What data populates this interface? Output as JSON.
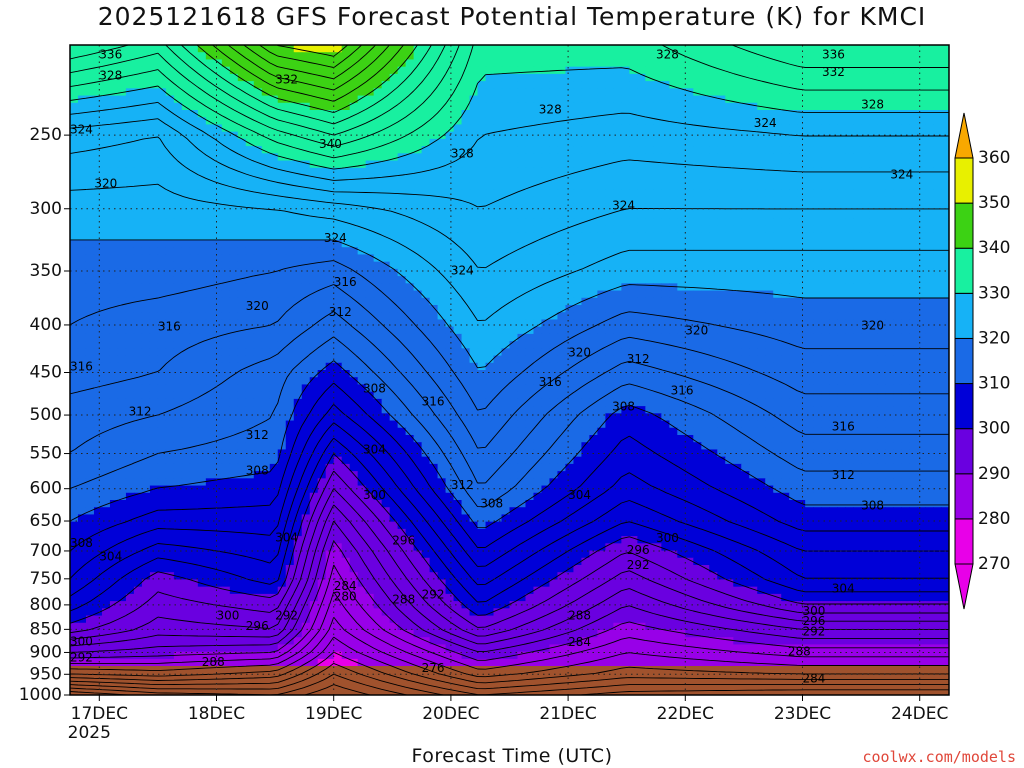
{
  "title": "2025121618 GFS Forecast Potential Temperature (K) for KMCI",
  "xlabel": "Forecast Time (UTC)",
  "credit": "coolwx.com/models",
  "chart_data": {
    "type": "heatmap",
    "title": "2025121618 GFS Forecast Potential Temperature (K) for KMCI",
    "xlabel": "Forecast Time (UTC)",
    "ylabel": "",
    "y_scale": "log",
    "y_inverted": true,
    "ylim": [
      1000,
      200
    ],
    "xlim": [
      "2025-12-16T18",
      "2025-12-24T06"
    ],
    "x_ticks": [
      {
        "label": "17DEC",
        "sub": "2025",
        "time": "2025-12-17T00"
      },
      {
        "label": "18DEC",
        "time": "2025-12-18T00"
      },
      {
        "label": "19DEC",
        "time": "2025-12-19T00"
      },
      {
        "label": "20DEC",
        "time": "2025-12-20T00"
      },
      {
        "label": "21DEC",
        "time": "2025-12-21T00"
      },
      {
        "label": "22DEC",
        "time": "2025-12-22T00"
      },
      {
        "label": "23DEC",
        "time": "2025-12-23T00"
      },
      {
        "label": "24DEC",
        "time": "2025-12-24T00"
      }
    ],
    "y_ticks": [
      250,
      300,
      350,
      400,
      450,
      500,
      550,
      600,
      650,
      700,
      750,
      800,
      850,
      900,
      950,
      1000
    ],
    "grid": true,
    "colorbar": {
      "location": "right",
      "ticks": [
        270,
        280,
        290,
        300,
        310,
        320,
        330,
        340,
        350,
        360
      ],
      "colors": [
        "#e800e8",
        "#9800e8",
        "#6a00e0",
        "#0000d8",
        "#1a6ae6",
        "#16b2f6",
        "#18f0a0",
        "#3cd214",
        "#e8f000",
        "#f8a800"
      ]
    },
    "contour_interval": 2,
    "ground_color": "#a0522d",
    "profiles": [
      {
        "time": "2025-12-16T18",
        "levels": [
          1000,
          950,
          900,
          850,
          800,
          750,
          700,
          650,
          600,
          550,
          500,
          450,
          400,
          350,
          300,
          250,
          200
        ],
        "theta": [
          272,
          284,
          292,
          299,
          303,
          306,
          308,
          310,
          312,
          314,
          315,
          317,
          318,
          319,
          321,
          325,
          338
        ]
      },
      {
        "time": "2025-12-17T12",
        "levels": [
          1000,
          950,
          900,
          850,
          800,
          750,
          700,
          650,
          600,
          550,
          500,
          450,
          400,
          350,
          300,
          250,
          200
        ],
        "theta": [
          275,
          285,
          291,
          295,
          297,
          299,
          303,
          307,
          310,
          312,
          314,
          316,
          317,
          319,
          321,
          324,
          335
        ]
      },
      {
        "time": "2025-12-18T12",
        "levels": [
          1000,
          950,
          900,
          850,
          800,
          750,
          700,
          650,
          600,
          550,
          500,
          450,
          400,
          350,
          300,
          250,
          200
        ],
        "theta": [
          276,
          283,
          290,
          296,
          299,
          303,
          305,
          307,
          309,
          311,
          312,
          313,
          316,
          318,
          322,
          333,
          350
        ]
      },
      {
        "time": "2025-12-19T00",
        "levels": [
          1000,
          950,
          900,
          850,
          800,
          750,
          700,
          650,
          600,
          550,
          500,
          450,
          400,
          350,
          300,
          250,
          200
        ],
        "theta": [
          272,
          276,
          280,
          283,
          285,
          287,
          289,
          292,
          296,
          300,
          305,
          309,
          313,
          317,
          323,
          336,
          352
        ]
      },
      {
        "time": "2025-12-20T06",
        "levels": [
          1000,
          950,
          900,
          850,
          800,
          750,
          700,
          650,
          600,
          550,
          500,
          450,
          400,
          350,
          300,
          250,
          200
        ],
        "theta": [
          280,
          287,
          292,
          298,
          302,
          305,
          308,
          311,
          314,
          316,
          318,
          320,
          322,
          324,
          326,
          328,
          331
        ]
      },
      {
        "time": "2025-12-21T12",
        "levels": [
          1000,
          950,
          900,
          850,
          800,
          750,
          700,
          650,
          600,
          550,
          500,
          450,
          400,
          350,
          300,
          250,
          200
        ],
        "theta": [
          277,
          283,
          286,
          289,
          292,
          295,
          298,
          302,
          305,
          307,
          309,
          313,
          317,
          321,
          324,
          327,
          331
        ]
      },
      {
        "time": "2025-12-23T00",
        "levels": [
          1000,
          950,
          900,
          850,
          800,
          750,
          700,
          650,
          600,
          550,
          500,
          450,
          400,
          350,
          300,
          250,
          200
        ],
        "theta": [
          276,
          284,
          289,
          294,
          300,
          304,
          306,
          309,
          311,
          313,
          315,
          317,
          319,
          321,
          324,
          328,
          336
        ]
      }
    ],
    "contour_labels": [
      {
        "text": "336",
        "time": "2025-12-17T00",
        "p": 205
      },
      {
        "text": "328",
        "time": "2025-12-17T00",
        "p": 216
      },
      {
        "text": "332",
        "time": "2025-12-18T12",
        "p": 218
      },
      {
        "text": "340",
        "time": "2025-12-18T21",
        "p": 256
      },
      {
        "text": "328",
        "time": "2025-12-21T18",
        "p": 205
      },
      {
        "text": "336",
        "time": "2025-12-23T04",
        "p": 205
      },
      {
        "text": "332",
        "time": "2025-12-23T04",
        "p": 214
      },
      {
        "text": "328",
        "time": "2025-12-20T00",
        "p": 262
      },
      {
        "text": "328",
        "time": "2025-12-20T18",
        "p": 235
      },
      {
        "text": "328",
        "time": "2025-12-23T12",
        "p": 232
      },
      {
        "text": "324",
        "time": "2025-12-16T18",
        "p": 247
      },
      {
        "text": "324",
        "time": "2025-12-22T14",
        "p": 243
      },
      {
        "text": "324",
        "time": "2025-12-23T18",
        "p": 276
      },
      {
        "text": "320",
        "time": "2025-12-16T23",
        "p": 282
      },
      {
        "text": "324",
        "time": "2025-12-18T22",
        "p": 323
      },
      {
        "text": "324",
        "time": "2025-12-21T09",
        "p": 298
      },
      {
        "text": "324",
        "time": "2025-12-20T00",
        "p": 350
      },
      {
        "text": "316",
        "time": "2025-12-19T00",
        "p": 360
      },
      {
        "text": "320",
        "time": "2025-12-18T06",
        "p": 382
      },
      {
        "text": "312",
        "time": "2025-12-18T23",
        "p": 388
      },
      {
        "text": "316",
        "time": "2025-12-17T12",
        "p": 402
      },
      {
        "text": "320",
        "time": "2025-12-21T00",
        "p": 429
      },
      {
        "text": "312",
        "time": "2025-12-21T12",
        "p": 436
      },
      {
        "text": "320",
        "time": "2025-12-22T00",
        "p": 406
      },
      {
        "text": "320",
        "time": "2025-12-23T12",
        "p": 401
      },
      {
        "text": "316",
        "time": "2025-12-16T18",
        "p": 444
      },
      {
        "text": "316",
        "time": "2025-12-20T18",
        "p": 461
      },
      {
        "text": "316",
        "time": "2025-12-21T21",
        "p": 471
      },
      {
        "text": "308",
        "time": "2025-12-19T06",
        "p": 469
      },
      {
        "text": "316",
        "time": "2025-12-19T18",
        "p": 484
      },
      {
        "text": "312",
        "time": "2025-12-17T06",
        "p": 496
      },
      {
        "text": "308",
        "time": "2025-12-21T09",
        "p": 490
      },
      {
        "text": "316",
        "time": "2025-12-23T06",
        "p": 515
      },
      {
        "text": "312",
        "time": "2025-12-18T06",
        "p": 526
      },
      {
        "text": "304",
        "time": "2025-12-19T06",
        "p": 545
      },
      {
        "text": "308",
        "time": "2025-12-18T06",
        "p": 574
      },
      {
        "text": "312",
        "time": "2025-12-20T00",
        "p": 595
      },
      {
        "text": "312",
        "time": "2025-12-23T06",
        "p": 581
      },
      {
        "text": "308",
        "time": "2025-12-20T06",
        "p": 623
      },
      {
        "text": "304",
        "time": "2025-12-21T00",
        "p": 610
      },
      {
        "text": "300",
        "time": "2025-12-19T06",
        "p": 610
      },
      {
        "text": "308",
        "time": "2025-12-23T12",
        "p": 626
      },
      {
        "text": "308",
        "time": "2025-12-16T18",
        "p": 687
      },
      {
        "text": "304",
        "time": "2025-12-17T00",
        "p": 711
      },
      {
        "text": "304",
        "time": "2025-12-18T12",
        "p": 678
      },
      {
        "text": "296",
        "time": "2025-12-19T12",
        "p": 683
      },
      {
        "text": "300",
        "time": "2025-12-21T18",
        "p": 679
      },
      {
        "text": "296",
        "time": "2025-12-21T12",
        "p": 699
      },
      {
        "text": "292",
        "time": "2025-12-21T12",
        "p": 726
      },
      {
        "text": "284",
        "time": "2025-12-19T00",
        "p": 764
      },
      {
        "text": "280",
        "time": "2025-12-19T00",
        "p": 785
      },
      {
        "text": "288",
        "time": "2025-12-19T12",
        "p": 790
      },
      {
        "text": "292",
        "time": "2025-12-19T18",
        "p": 781
      },
      {
        "text": "304",
        "time": "2025-12-23T06",
        "p": 769
      },
      {
        "text": "300",
        "time": "2025-12-18T00",
        "p": 822
      },
      {
        "text": "292",
        "time": "2025-12-18T12",
        "p": 822
      },
      {
        "text": "296",
        "time": "2025-12-18T06",
        "p": 844
      },
      {
        "text": "288",
        "time": "2025-12-21T00",
        "p": 822
      },
      {
        "text": "300",
        "time": "2025-12-23T00",
        "p": 813
      },
      {
        "text": "296",
        "time": "2025-12-23T00",
        "p": 834
      },
      {
        "text": "292",
        "time": "2025-12-23T00",
        "p": 856
      },
      {
        "text": "284",
        "time": "2025-12-21T00",
        "p": 878
      },
      {
        "text": "288",
        "time": "2025-12-22T21",
        "p": 899
      },
      {
        "text": "300",
        "time": "2025-12-16T18",
        "p": 877
      },
      {
        "text": "292",
        "time": "2025-12-16T18",
        "p": 913
      },
      {
        "text": "288",
        "time": "2025-12-17T21",
        "p": 923
      },
      {
        "text": "276",
        "time": "2025-12-19T18",
        "p": 937
      },
      {
        "text": "284",
        "time": "2025-12-23T00",
        "p": 961
      }
    ]
  }
}
